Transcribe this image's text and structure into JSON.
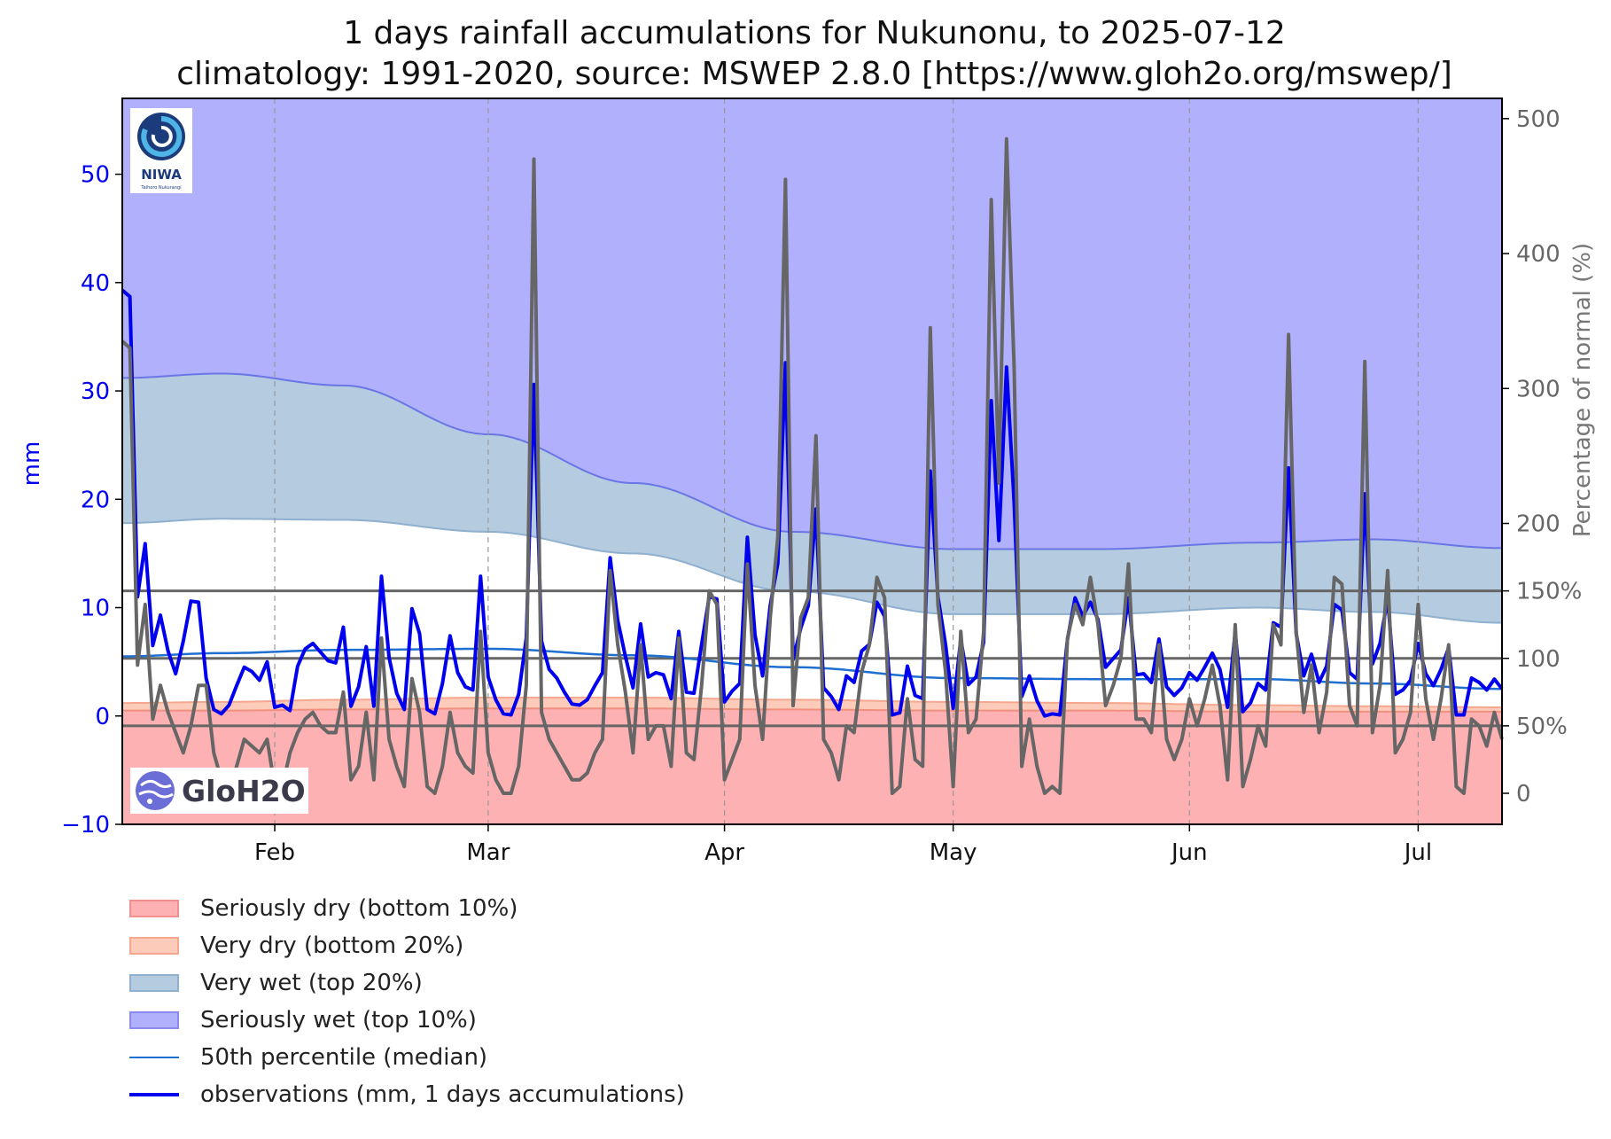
{
  "title_line1": "1 days rainfall accumulations for Nukunonu, to 2025-07-12",
  "title_line2": "climatology: 1991-2020, source: MSWEP 2.8.0 [https://www.gloh2o.org/mswep/]",
  "logos": {
    "niwa": "NIWA",
    "niwa_sub": "Taihoro Nukurangi",
    "gloh2o": "GloH2O"
  },
  "colors": {
    "seriously_wet": "#b0b0fd",
    "very_wet": "#b4cbe0",
    "normal": "#ffffff",
    "very_dry": "#fdcbb9",
    "seriously_dry": "#feb1b2",
    "median": "#1f6fd1",
    "observations": "#0000ee",
    "percent": "#666666",
    "wet_edge": "#6a75e6",
    "dry_edge": "#f09080"
  },
  "legend": [
    {
      "label": "Seriously dry (bottom 10%)",
      "kind": "patch",
      "fill": "#feb1b2",
      "edge": "#f29090"
    },
    {
      "label": "Very dry (bottom 20%)",
      "kind": "patch",
      "fill": "#fdcbb9",
      "edge": "#f5a88f"
    },
    {
      "label": "Very wet (top 20%)",
      "kind": "patch",
      "fill": "#b4cbe0",
      "edge": "#8fb0cf"
    },
    {
      "label": "Seriously wet (top 10%)",
      "kind": "patch",
      "fill": "#b0b0fd",
      "edge": "#8a8af0"
    },
    {
      "label": "50th percentile (median)",
      "kind": "line",
      "color": "#1f6fd1",
      "width": 2
    },
    {
      "label": "observations (mm, 1 days accumulations)",
      "kind": "line",
      "color": "#0000ee",
      "width": 4
    }
  ],
  "chart_data": {
    "type": "line",
    "left_axis": {
      "label": "mm",
      "ylim": [
        -10,
        57
      ],
      "ticks": [
        -10,
        0,
        10,
        20,
        30,
        40,
        50
      ],
      "tick_labels": [
        "−10",
        "0",
        "10",
        "20",
        "30",
        "40",
        "50"
      ]
    },
    "right_axis": {
      "label": "Percentage of normal (%)",
      "ylim": [
        -23,
        515
      ],
      "ticks": [
        0,
        50,
        100,
        150,
        200,
        300,
        400,
        500
      ],
      "tick_labels": [
        "0",
        "50%",
        "100",
        "150%",
        "200",
        "300",
        "400",
        "500"
      ]
    },
    "x_axis": {
      "start": "2025-01-12",
      "end": "2025-07-12",
      "ticks": [
        "2025-02-01",
        "2025-03-01",
        "2025-04-01",
        "2025-05-01",
        "2025-06-01",
        "2025-07-01"
      ],
      "tick_labels": [
        "Feb",
        "Mar",
        "Apr",
        "May",
        "Jun",
        "Jul"
      ],
      "grid": "dashed vertical at month starts"
    },
    "reference_lines_percent": [
      50,
      100,
      150
    ],
    "climatology": {
      "dates": [
        "2025-01-12",
        "2025-01-25",
        "2025-02-10",
        "2025-03-01",
        "2025-03-20",
        "2025-04-10",
        "2025-05-01",
        "2025-05-20",
        "2025-06-10",
        "2025-06-25",
        "2025-07-12"
      ],
      "p10": [
        0.5,
        0.5,
        0.6,
        0.7,
        0.7,
        0.6,
        0.5,
        0.5,
        0.4,
        0.4,
        0.4
      ],
      "p20": [
        1.2,
        1.3,
        1.5,
        1.7,
        1.7,
        1.5,
        1.3,
        1.2,
        1.0,
        0.9,
        0.8
      ],
      "median": [
        5.5,
        5.8,
        6.1,
        6.2,
        5.6,
        4.5,
        3.5,
        3.4,
        3.4,
        3.0,
        2.5
      ],
      "p80": [
        17.8,
        18.2,
        18.1,
        17.0,
        15.0,
        11.5,
        9.4,
        9.4,
        10.0,
        9.6,
        8.6
      ],
      "p90": [
        31.2,
        31.6,
        30.5,
        26.0,
        21.5,
        17.0,
        15.4,
        15.4,
        16.0,
        16.3,
        15.5
      ]
    },
    "observations_mm": {
      "dates": [
        "2025-01-12",
        "2025-01-13",
        "2025-01-14",
        "2025-01-15",
        "2025-01-16",
        "2025-01-17",
        "2025-01-18",
        "2025-01-19",
        "2025-01-20",
        "2025-01-21",
        "2025-01-22",
        "2025-01-23",
        "2025-01-24",
        "2025-01-25",
        "2025-01-26",
        "2025-01-27",
        "2025-01-28",
        "2025-01-29",
        "2025-01-30",
        "2025-01-31",
        "2025-02-01",
        "2025-02-02",
        "2025-02-03",
        "2025-02-04",
        "2025-02-05",
        "2025-02-06",
        "2025-02-07",
        "2025-02-08",
        "2025-02-09",
        "2025-02-10",
        "2025-02-11",
        "2025-02-12",
        "2025-02-13",
        "2025-02-14",
        "2025-02-15",
        "2025-02-16",
        "2025-02-17",
        "2025-02-18",
        "2025-02-19",
        "2025-02-20",
        "2025-02-21",
        "2025-02-22",
        "2025-02-23",
        "2025-02-24",
        "2025-02-25",
        "2025-02-26",
        "2025-02-27",
        "2025-02-28",
        "2025-03-01",
        "2025-03-02",
        "2025-03-03",
        "2025-03-04",
        "2025-03-05",
        "2025-03-06",
        "2025-03-07",
        "2025-03-08",
        "2025-03-09",
        "2025-03-10",
        "2025-03-11",
        "2025-03-12",
        "2025-03-13",
        "2025-03-14",
        "2025-03-15",
        "2025-03-16",
        "2025-03-17",
        "2025-03-18",
        "2025-03-19",
        "2025-03-20",
        "2025-03-21",
        "2025-03-22",
        "2025-03-23",
        "2025-03-24",
        "2025-03-25",
        "2025-03-26",
        "2025-03-27",
        "2025-03-28",
        "2025-03-29",
        "2025-03-30",
        "2025-03-31",
        "2025-04-01",
        "2025-04-02",
        "2025-04-03",
        "2025-04-04",
        "2025-04-05",
        "2025-04-06",
        "2025-04-07",
        "2025-04-08",
        "2025-04-09",
        "2025-04-10",
        "2025-04-11",
        "2025-04-12",
        "2025-04-13",
        "2025-04-14",
        "2025-04-15",
        "2025-04-16",
        "2025-04-17",
        "2025-04-18",
        "2025-04-19",
        "2025-04-20",
        "2025-04-21",
        "2025-04-22",
        "2025-04-23",
        "2025-04-24",
        "2025-04-25",
        "2025-04-26",
        "2025-04-27",
        "2025-04-28",
        "2025-04-29",
        "2025-04-30",
        "2025-05-01",
        "2025-05-02",
        "2025-05-03",
        "2025-05-04",
        "2025-05-05",
        "2025-05-06",
        "2025-05-07",
        "2025-05-08",
        "2025-05-09",
        "2025-05-10",
        "2025-05-11",
        "2025-05-12",
        "2025-05-13",
        "2025-05-14",
        "2025-05-15",
        "2025-05-16",
        "2025-05-17",
        "2025-05-18",
        "2025-05-19",
        "2025-05-20",
        "2025-05-21",
        "2025-05-22",
        "2025-05-23",
        "2025-05-24",
        "2025-05-25",
        "2025-05-26",
        "2025-05-27",
        "2025-05-28",
        "2025-05-29",
        "2025-05-30",
        "2025-05-31",
        "2025-06-01",
        "2025-06-02",
        "2025-06-03",
        "2025-06-04",
        "2025-06-05",
        "2025-06-06",
        "2025-06-07",
        "2025-06-08",
        "2025-06-09",
        "2025-06-10",
        "2025-06-11",
        "2025-06-12",
        "2025-06-13",
        "2025-06-14",
        "2025-06-15",
        "2025-06-16",
        "2025-06-17",
        "2025-06-18",
        "2025-06-19",
        "2025-06-20",
        "2025-06-21",
        "2025-06-22",
        "2025-06-23",
        "2025-06-24",
        "2025-06-25",
        "2025-06-26",
        "2025-06-27",
        "2025-06-28",
        "2025-06-29",
        "2025-06-30",
        "2025-07-01",
        "2025-07-02",
        "2025-07-03",
        "2025-07-04",
        "2025-07-05",
        "2025-07-06",
        "2025-07-07",
        "2025-07-08",
        "2025-07-09",
        "2025-07-10",
        "2025-07-11",
        "2025-07-12"
      ],
      "values": [
        39.3,
        38.7,
        11.0,
        15.9,
        6.5,
        9.3,
        6.0,
        3.9,
        6.9,
        10.6,
        10.5,
        3.5,
        0.6,
        0.2,
        1.0,
        2.8,
        4.5,
        4.1,
        3.3,
        5.0,
        0.8,
        1.0,
        0.5,
        4.6,
        6.2,
        6.7,
        5.9,
        5.1,
        4.9,
        8.2,
        0.9,
        2.7,
        6.4,
        0.9,
        12.9,
        5.4,
        2.1,
        0.6,
        9.9,
        7.6,
        0.6,
        0.2,
        3.0,
        7.4,
        4.0,
        2.7,
        2.4,
        12.9,
        3.6,
        1.5,
        0.2,
        0.1,
        2.0,
        7.2,
        30.6,
        6.9,
        4.3,
        3.5,
        2.2,
        1.1,
        1.0,
        1.5,
        2.8,
        4.0,
        14.6,
        8.8,
        5.5,
        2.6,
        8.5,
        3.6,
        4.0,
        3.8,
        1.6,
        7.8,
        2.2,
        2.1,
        6.6,
        11.0,
        10.8,
        1.3,
        2.3,
        3.0,
        16.5,
        7.5,
        3.7,
        10.2,
        14.1,
        32.6,
        5.2,
        8.1,
        10.2,
        19.1,
        2.6,
        1.8,
        0.6,
        3.7,
        3.1,
        6.0,
        6.6,
        10.5,
        9.2,
        0.1,
        0.3,
        4.6,
        1.9,
        1.6,
        22.6,
        11.0,
        6.6,
        0.7,
        7.1,
        2.9,
        3.6,
        6.8,
        29.1,
        16.2,
        32.2,
        19.7,
        1.8,
        3.7,
        1.4,
        0.0,
        0.2,
        0.1,
        7.1,
        10.9,
        9.2,
        10.5,
        8.9,
        4.5,
        5.3,
        6.1,
        10.9,
        3.8,
        3.9,
        3.1,
        7.1,
        2.7,
        1.9,
        2.6,
        4.0,
        3.3,
        4.5,
        5.8,
        4.3,
        0.8,
        7.7,
        0.4,
        1.2,
        3.0,
        2.4,
        8.6,
        8.2,
        22.9,
        7.6,
        3.7,
        5.7,
        3.1,
        4.6,
        10.3,
        9.8,
        4.0,
        3.4,
        20.5,
        4.8,
        6.7,
        10.9,
        2.0,
        2.4,
        3.3,
        6.7,
        3.9,
        2.8,
        4.3,
        6.3,
        0.1,
        0.1,
        3.5,
        3.1,
        2.4,
        3.4,
        2.5
      ]
    },
    "percent_of_normal": {
      "dates_same_as_observations": true,
      "values": [
        335,
        330,
        95,
        140,
        55,
        80,
        60,
        45,
        30,
        50,
        80,
        80,
        30,
        10,
        0,
        20,
        40,
        35,
        30,
        40,
        5,
        5,
        30,
        45,
        55,
        60,
        50,
        45,
        45,
        75,
        10,
        20,
        60,
        10,
        115,
        40,
        20,
        5,
        85,
        60,
        5,
        0,
        20,
        60,
        30,
        20,
        15,
        120,
        30,
        10,
        0,
        0,
        20,
        80,
        470,
        60,
        40,
        30,
        20,
        10,
        10,
        15,
        30,
        40,
        165,
        110,
        75,
        30,
        110,
        40,
        50,
        50,
        20,
        115,
        30,
        25,
        80,
        150,
        140,
        10,
        25,
        40,
        170,
        80,
        40,
        130,
        190,
        455,
        65,
        130,
        145,
        265,
        40,
        30,
        10,
        50,
        45,
        90,
        110,
        160,
        145,
        0,
        5,
        70,
        25,
        20,
        345,
        140,
        90,
        5,
        120,
        45,
        55,
        120,
        440,
        230,
        485,
        315,
        20,
        55,
        20,
        0,
        5,
        0,
        115,
        140,
        125,
        160,
        125,
        65,
        80,
        100,
        170,
        55,
        55,
        45,
        110,
        40,
        25,
        40,
        70,
        50,
        70,
        95,
        65,
        10,
        125,
        5,
        25,
        50,
        35,
        125,
        110,
        340,
        120,
        60,
        95,
        45,
        75,
        160,
        155,
        65,
        50,
        320,
        45,
        80,
        165,
        30,
        40,
        60,
        140,
        70,
        40,
        70,
        110,
        5,
        0,
        55,
        50,
        35,
        60,
        40
      ]
    }
  }
}
